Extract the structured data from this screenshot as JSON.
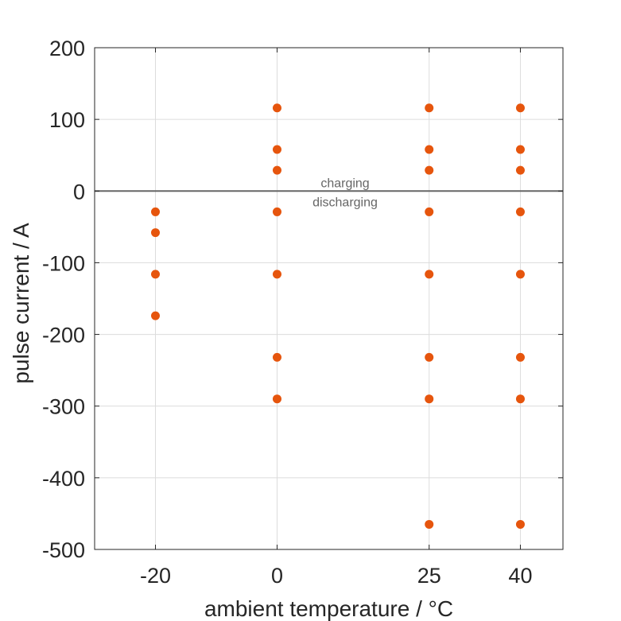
{
  "chart_data": {
    "type": "scatter",
    "xlabel": "ambient temperature / °C",
    "ylabel": "pulse current / A",
    "xlim": [
      -30,
      47
    ],
    "ylim": [
      -500,
      200
    ],
    "x_ticks": [
      -20,
      0,
      25,
      40
    ],
    "y_ticks": [
      200,
      100,
      0,
      -100,
      -200,
      -300,
      -400,
      -500
    ],
    "grid": true,
    "zero_line": 0,
    "annotations": {
      "above": "charging",
      "below": "discharging"
    },
    "series": [
      {
        "color": "#E6550D",
        "points": [
          {
            "x": -20,
            "y": -29
          },
          {
            "x": -20,
            "y": -58
          },
          {
            "x": -20,
            "y": -116
          },
          {
            "x": -20,
            "y": -174
          },
          {
            "x": 0,
            "y": 116
          },
          {
            "x": 0,
            "y": 58
          },
          {
            "x": 0,
            "y": 29
          },
          {
            "x": 0,
            "y": -29
          },
          {
            "x": 0,
            "y": -116
          },
          {
            "x": 0,
            "y": -232
          },
          {
            "x": 0,
            "y": -290
          },
          {
            "x": 25,
            "y": 116
          },
          {
            "x": 25,
            "y": 58
          },
          {
            "x": 25,
            "y": 29
          },
          {
            "x": 25,
            "y": -29
          },
          {
            "x": 25,
            "y": -116
          },
          {
            "x": 25,
            "y": -232
          },
          {
            "x": 25,
            "y": -290
          },
          {
            "x": 25,
            "y": -465
          },
          {
            "x": 40,
            "y": 116
          },
          {
            "x": 40,
            "y": 58
          },
          {
            "x": 40,
            "y": 29
          },
          {
            "x": 40,
            "y": -29
          },
          {
            "x": 40,
            "y": -116
          },
          {
            "x": 40,
            "y": -232
          },
          {
            "x": 40,
            "y": -290
          },
          {
            "x": 40,
            "y": -465
          }
        ]
      }
    ]
  }
}
